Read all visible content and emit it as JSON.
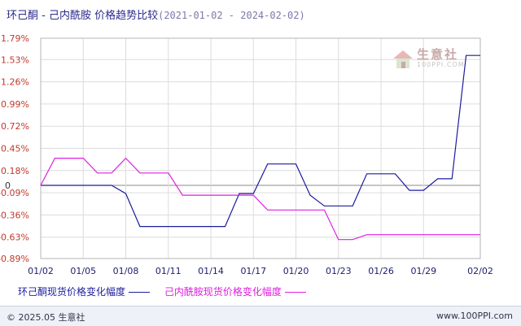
{
  "header": {
    "title": "环己酮 - 己内酰胺 价格趋势比较",
    "date_range": "(2021-01-02 - 2024-02-02)"
  },
  "watermark": {
    "text": "生意社",
    "sub": "100PPI.COM"
  },
  "footer": {
    "left": "© 2025.05 生意社",
    "right": "www.100PPI.com"
  },
  "colors": {
    "series1": "#1c1c9e",
    "series2": "#e01ee0",
    "axis": "#c0392b",
    "grid": "#dcdcdc",
    "zero": "#8a8a8a"
  },
  "chart_data": {
    "type": "line",
    "x": [
      "01/02",
      "01/03",
      "01/04",
      "01/05",
      "01/06",
      "01/07",
      "01/08",
      "01/09",
      "01/10",
      "01/11",
      "01/12",
      "01/13",
      "01/14",
      "01/15",
      "01/16",
      "01/17",
      "01/18",
      "01/19",
      "01/20",
      "01/21",
      "01/22",
      "01/23",
      "01/24",
      "01/25",
      "01/26",
      "01/27",
      "01/28",
      "01/29",
      "01/30",
      "01/31",
      "02/01",
      "02/02"
    ],
    "x_ticks": [
      "01/02",
      "01/05",
      "01/08",
      "01/11",
      "01/14",
      "01/17",
      "01/20",
      "01/23",
      "01/26",
      "01/29",
      "02/02"
    ],
    "y_ticks": [
      "1.79%",
      "1.53%",
      "1.26%",
      "0.99%",
      "0.72%",
      "0.45%",
      "0.18%",
      "-0.09%",
      "-0.36%",
      "-0.63%",
      "-0.89%"
    ],
    "y_tick_values": [
      1.79,
      1.53,
      1.26,
      0.99,
      0.72,
      0.45,
      0.18,
      -0.09,
      -0.36,
      -0.63,
      -0.89
    ],
    "zero_label": "0",
    "ylim": [
      -0.89,
      1.79
    ],
    "series": [
      {
        "name": "环己酮现货价格变化幅度",
        "values": [
          0,
          0,
          0,
          0,
          0,
          0,
          -0.1,
          -0.5,
          -0.5,
          -0.5,
          -0.5,
          -0.5,
          -0.5,
          -0.5,
          -0.1,
          -0.1,
          0.26,
          0.26,
          0.26,
          -0.12,
          -0.25,
          -0.25,
          -0.25,
          0.14,
          0.14,
          0.14,
          -0.06,
          -0.06,
          0.08,
          0.08,
          1.58,
          1.58
        ]
      },
      {
        "name": "己内酰胺现货价格变化幅度",
        "values": [
          0,
          0.33,
          0.33,
          0.33,
          0.15,
          0.15,
          0.33,
          0.15,
          0.15,
          0.15,
          -0.12,
          -0.12,
          -0.12,
          -0.12,
          -0.12,
          -0.12,
          -0.3,
          -0.3,
          -0.3,
          -0.3,
          -0.3,
          -0.66,
          -0.66,
          -0.6,
          -0.6,
          -0.6,
          -0.6,
          -0.6,
          -0.6,
          -0.6,
          -0.6,
          -0.6
        ]
      }
    ]
  }
}
